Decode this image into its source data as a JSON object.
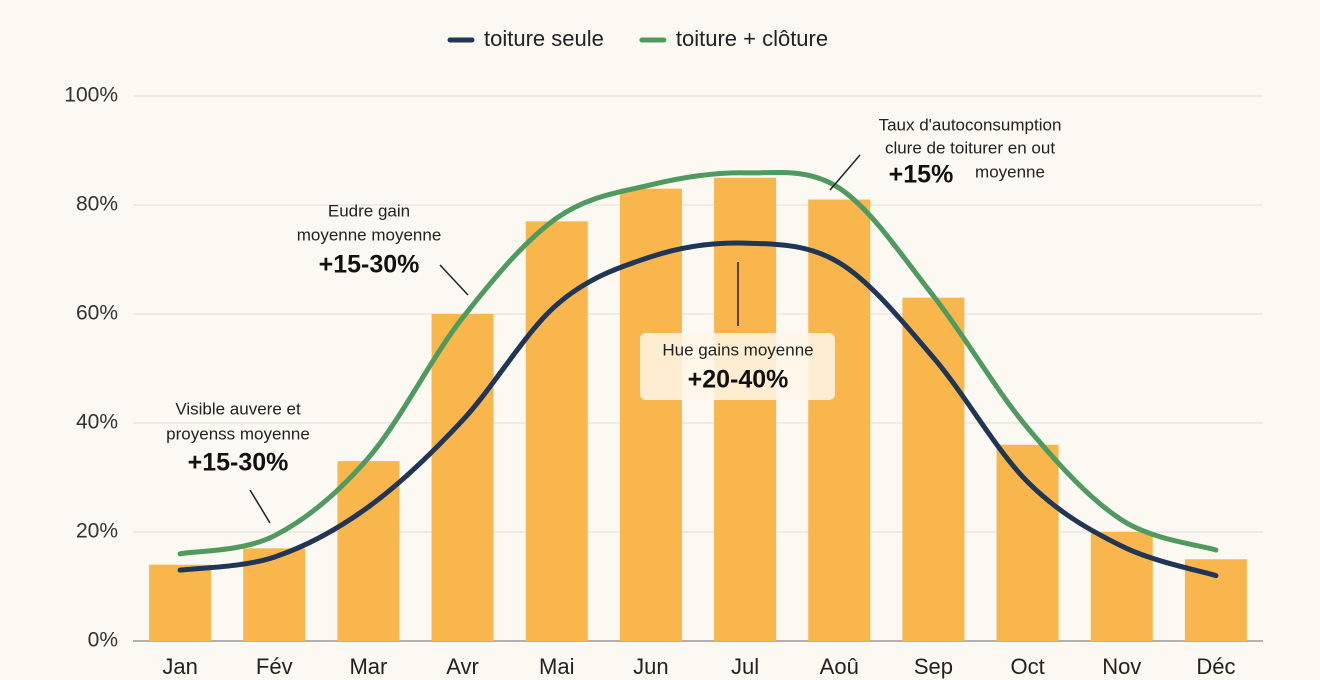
{
  "chart_data": {
    "type": "bar-line",
    "categories": [
      "Jan",
      "Fév",
      "Mar",
      "Avr",
      "Mai",
      "Jun",
      "Jul",
      "Aoû",
      "Sep",
      "Oct",
      "Nov",
      "Déc"
    ],
    "series": [
      {
        "type": "bar",
        "color": "#f9b64c",
        "values": [
          14,
          17,
          33,
          60,
          77,
          83,
          85,
          81,
          63,
          36,
          20,
          15
        ]
      },
      {
        "type": "line",
        "name": "toiture seule",
        "color": "#1f3656",
        "values": [
          13,
          15.4,
          24.6,
          40.5,
          61.7,
          70.5,
          73,
          69.4,
          52,
          29.2,
          17.4,
          12
        ]
      },
      {
        "type": "line",
        "name": "toiture + clôture",
        "color": "#4f9a5e",
        "values": [
          16,
          19.3,
          33.6,
          59.3,
          77.6,
          83.7,
          85.9,
          83.1,
          63.3,
          39.1,
          22.2,
          16.7
        ]
      }
    ],
    "ylim": [
      0,
      100
    ],
    "yticks": [
      {
        "value": 0,
        "label": "0%"
      },
      {
        "value": 20,
        "label": "20%"
      },
      {
        "value": 40,
        "label": "40%"
      },
      {
        "value": 60,
        "label": "60%"
      },
      {
        "value": 80,
        "label": "80%"
      },
      {
        "value": 100,
        "label": "100%"
      }
    ],
    "grid": true,
    "legend": "top",
    "annotations": [
      {
        "lines": [
          "Visible auvere et",
          "proyenss moyenne"
        ],
        "highlight": "+15-30%"
      },
      {
        "lines": [
          "Eudre gain",
          "moyenne moyenne"
        ],
        "highlight": "+15-30%"
      },
      {
        "lines": [
          "Hue gains moyenne"
        ],
        "highlight": "+20-40%"
      },
      {
        "lines": [
          "Taux d'autoconsumption",
          "clure de toiturer en out",
          "moyenne"
        ],
        "highlight": "+15%"
      }
    ]
  }
}
